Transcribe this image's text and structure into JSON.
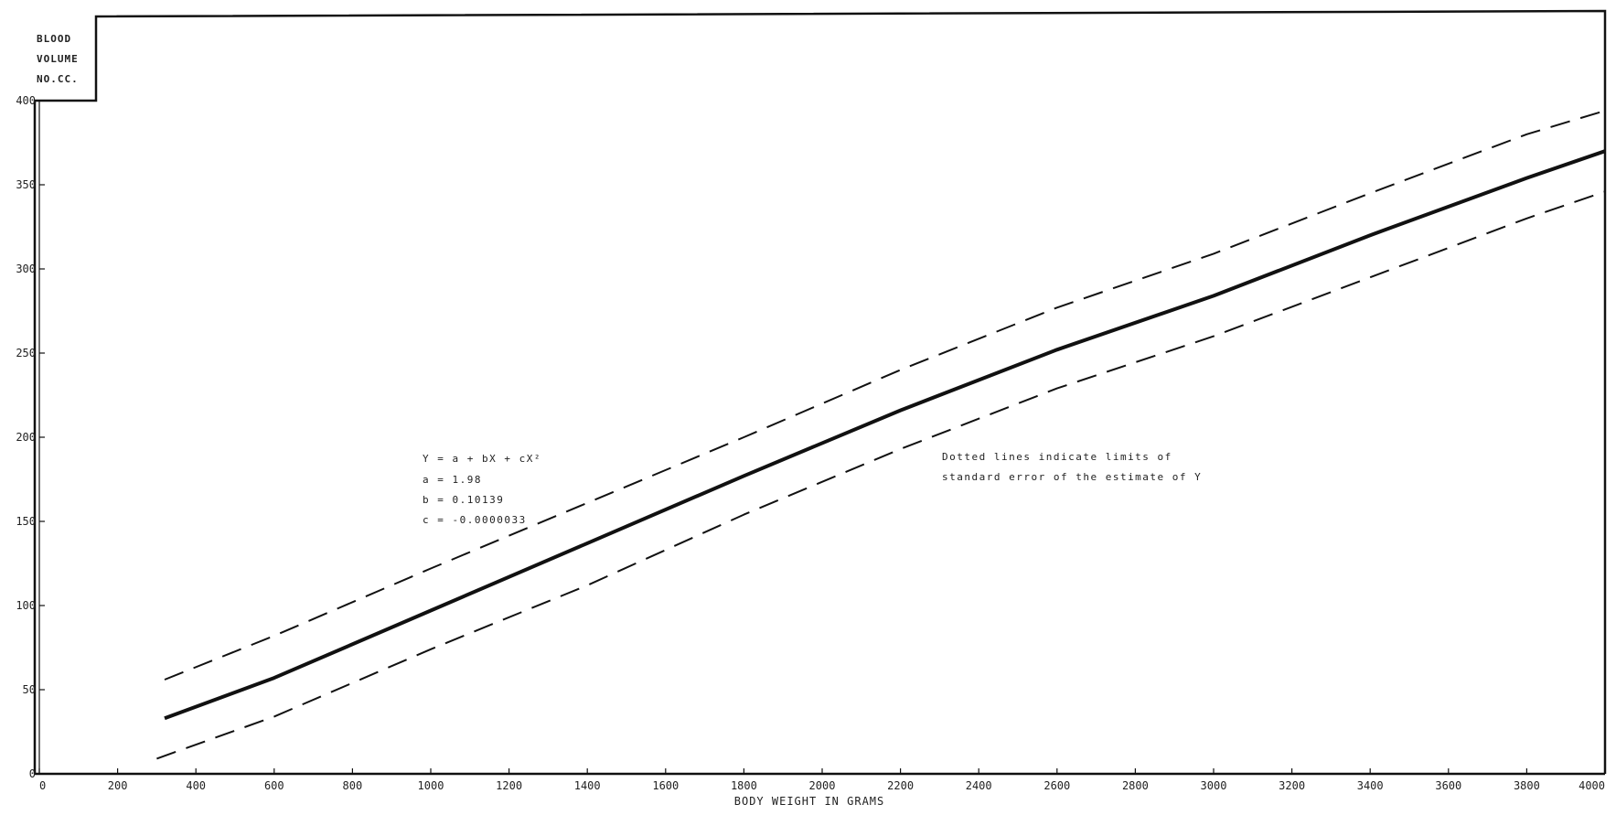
{
  "chart_data": {
    "type": "line",
    "xlabel": "BODY WEIGHT IN GRAMS",
    "ylabel_lines": [
      "BLOOD",
      "VOLUME",
      "NO.CC."
    ],
    "xlim": [
      0,
      4000
    ],
    "ylim": [
      0,
      400
    ],
    "x_ticks": [
      0,
      200,
      400,
      600,
      800,
      1000,
      1200,
      1400,
      1600,
      1800,
      2000,
      2200,
      2400,
      2600,
      2800,
      3000,
      3200,
      3400,
      3600,
      3800,
      4000
    ],
    "x_tick_labels": [
      "0",
      "200",
      "400",
      "600",
      "800",
      "1000",
      "1200",
      "1400",
      "1600",
      "1800",
      "2000",
      "2200",
      "2400",
      "2600",
      "2800",
      "3000",
      "3200",
      "3400",
      "3600",
      "3800",
      "4000"
    ],
    "y_ticks": [
      0,
      50,
      100,
      150,
      200,
      250,
      300,
      350,
      400
    ],
    "y_tick_labels": [
      "0",
      "50",
      "100",
      "150",
      "200",
      "250",
      "300",
      "350",
      "400"
    ],
    "grid": false,
    "series": [
      {
        "style": "solid",
        "color": "#111111",
        "x": [
          320,
          600,
          1000,
          1400,
          1800,
          2200,
          2600,
          3000,
          3400,
          3800,
          4000
        ],
        "y": [
          33,
          57,
          97,
          137,
          177,
          216,
          252,
          284,
          320,
          354,
          370
        ]
      },
      {
        "style": "dashed",
        "color": "#111111",
        "x": [
          320,
          600,
          1000,
          1400,
          1800,
          2200,
          2600,
          3000,
          3400,
          3800,
          4000
        ],
        "y": [
          56,
          82,
          122,
          161,
          200,
          240,
          277,
          309,
          345,
          380,
          394
        ]
      },
      {
        "style": "dashed",
        "color": "#111111",
        "x": [
          300,
          600,
          1000,
          1400,
          1800,
          2200,
          2600,
          3000,
          3400,
          3800,
          4000
        ],
        "y": [
          9,
          34,
          74,
          112,
          154,
          193,
          229,
          260,
          295,
          330,
          346
        ]
      }
    ],
    "annotations": {
      "equation_lines": [
        "Y = a + bX + cX²",
        "a =  1.98",
        "b =  0.10139",
        "c = -0.0000033"
      ],
      "note_lines": [
        "Dotted lines indicate limits of",
        "standard error of the estimate of Y"
      ]
    }
  }
}
